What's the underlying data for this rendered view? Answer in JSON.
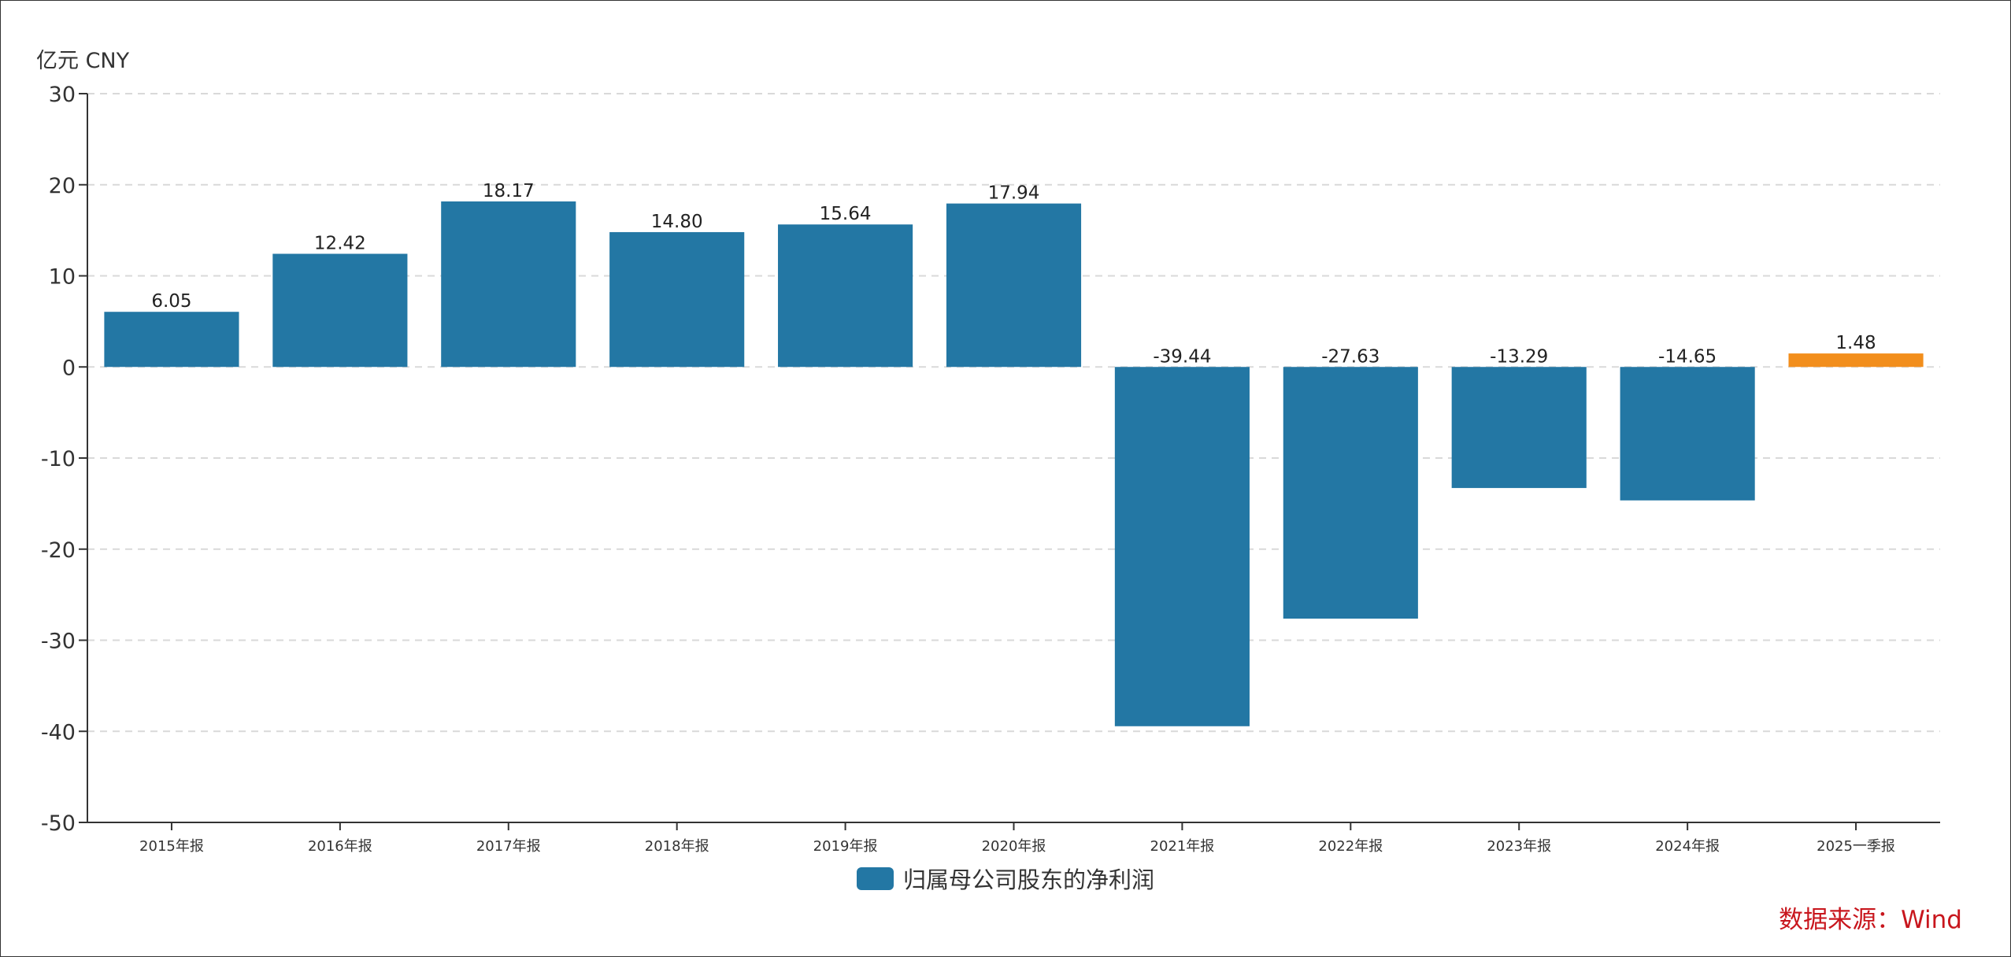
{
  "chart_data": {
    "type": "bar",
    "unit_label": "亿元  CNY",
    "categories": [
      "2015年报",
      "2016年报",
      "2017年报",
      "2018年报",
      "2019年报",
      "2020年报",
      "2021年报",
      "2022年报",
      "2023年报",
      "2024年报",
      "2025一季报"
    ],
    "series": [
      {
        "name": "归属母公司股东的净利润",
        "values": [
          6.05,
          12.42,
          18.17,
          14.8,
          15.64,
          17.94,
          -39.44,
          -27.63,
          -13.29,
          -14.65,
          1.48
        ],
        "labels": [
          "6.05",
          "12.42",
          "18.17",
          "14.80",
          "15.64",
          "17.94",
          "-39.44",
          "-27.63",
          "-13.29",
          "-14.65",
          "1.48"
        ],
        "color": "#2377a4",
        "highlight_index": 10,
        "highlight_color": "#f28e1c"
      }
    ],
    "ylim": [
      -50,
      30
    ],
    "yticks": [
      30,
      20,
      10,
      0,
      -10,
      -20,
      -30,
      -40,
      -50
    ],
    "grid": true,
    "legend": "bottom-center"
  },
  "source": "数据来源：Wind"
}
